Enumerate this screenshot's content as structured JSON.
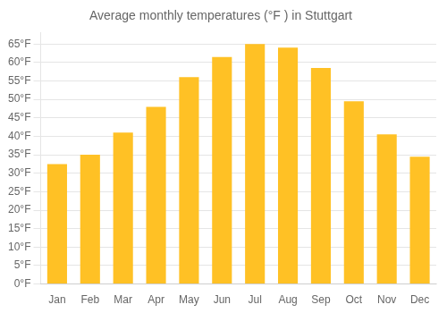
{
  "chart_data": {
    "type": "bar",
    "title": "Average monthly temperatures (°F ) in Stuttgart",
    "categories": [
      "Jan",
      "Feb",
      "Mar",
      "Apr",
      "May",
      "Jun",
      "Jul",
      "Aug",
      "Sep",
      "Oct",
      "Nov",
      "Dec"
    ],
    "values": [
      32.5,
      35.0,
      41.0,
      48.0,
      56.0,
      61.5,
      65.0,
      64.0,
      58.5,
      49.5,
      40.5,
      34.5
    ],
    "color": "#FFC125",
    "ylim": [
      0,
      68
    ],
    "yticks": [
      {
        "value": 0,
        "label": "0°F"
      },
      {
        "value": 5,
        "label": "5°F"
      },
      {
        "value": 10,
        "label": "10°F"
      },
      {
        "value": 15,
        "label": "15°F"
      },
      {
        "value": 20,
        "label": "20°F"
      },
      {
        "value": 25,
        "label": "25°F"
      },
      {
        "value": 30,
        "label": "30°F"
      },
      {
        "value": 35,
        "label": "35°F"
      },
      {
        "value": 40,
        "label": "40°F"
      },
      {
        "value": 45,
        "label": "45°F"
      },
      {
        "value": 50,
        "label": "50°F"
      },
      {
        "value": 55,
        "label": "55°F"
      },
      {
        "value": 60,
        "label": "60°F"
      },
      {
        "value": 65,
        "label": "65°F"
      }
    ],
    "grid": true
  }
}
